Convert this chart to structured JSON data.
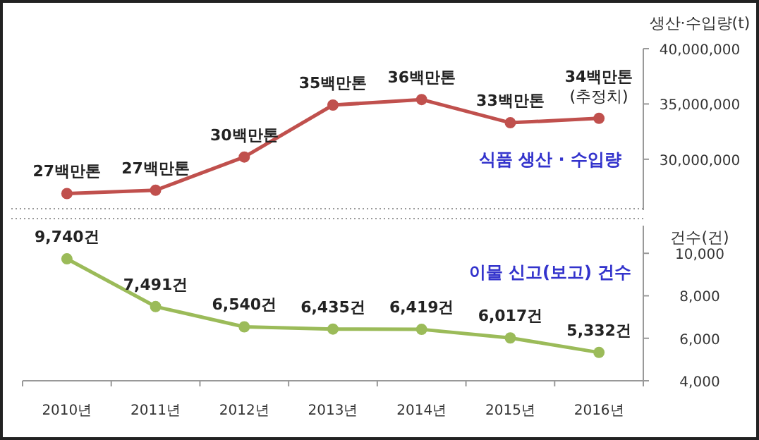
{
  "chart_data": [
    {
      "type": "line",
      "categories": [
        "2010년",
        "2011년",
        "2012년",
        "2013년",
        "2014년",
        "2015년",
        "2016년"
      ],
      "ylabel": "생산·수입량(t)",
      "marker": "circle",
      "tick_labels": "y",
      "annotations": [
        "식품 생산 · 수입량",
        {
          "text": "27백만톤",
          "x": "2010년",
          "y": 26900000
        },
        {
          "text": "27백만톤",
          "x": "2011년",
          "y": 27200000
        },
        {
          "text": "30백만톤",
          "x": "2012년",
          "y": 30200000
        },
        {
          "text": "35백만톤",
          "x": "2013년",
          "y": 34900000
        },
        {
          "text": "36백만톤",
          "x": "2014년",
          "y": 35400000
        },
        {
          "text": "33백만톤",
          "x": "2015년",
          "y": 33300000
        },
        {
          "text": "34백만톤\n(추정치)",
          "x": "2016년",
          "y": 33700000
        }
      ],
      "series": [
        {
          "color": "#c0504d",
          "values": [
            26900000,
            27200000,
            30200000,
            34900000,
            35400000,
            33300000,
            33700000
          ]
        }
      ],
      "ylim": [
        25400000,
        40000000
      ],
      "yticks": [
        {
          "value": 30000000,
          "label": "30,000,000"
        },
        {
          "value": 35000000,
          "label": "35,000,000"
        },
        {
          "value": 40000000,
          "label": "40,000,000"
        }
      ]
    },
    {
      "type": "line",
      "categories": [
        "2010년",
        "2011년",
        "2012년",
        "2013년",
        "2014년",
        "2015년",
        "2016년"
      ],
      "ylabel": "건수(건)",
      "annotations": [
        "이물 신고(보고) 건수"
      ],
      "marker": "circle",
      "series": [
        {
          "color": "#9bbb59",
          "values": [
            9740,
            7491,
            6540,
            6435,
            6419,
            6017,
            5332
          ],
          "value_labels": [
            "9,740건",
            "7,491건",
            "6,540건",
            "6,435건",
            "6,419건",
            "6,017건",
            "5,332건"
          ]
        }
      ],
      "ylim": [
        4000,
        11700
      ],
      "yticks": [
        {
          "value": 4000,
          "label": "4,000"
        },
        {
          "value": 6000,
          "label": "6,000"
        },
        {
          "value": 8000,
          "label": "8,000"
        },
        {
          "value": 10000,
          "label": "10,000"
        }
      ]
    }
  ]
}
